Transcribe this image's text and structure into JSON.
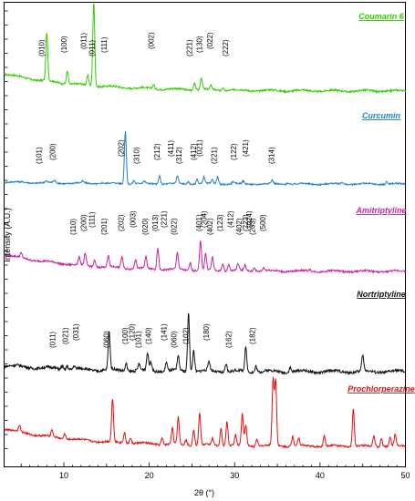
{
  "chart_data": {
    "type": "line",
    "title": "",
    "xlabel": "2θ (°)",
    "ylabel": "Intensity (A.U.)",
    "xlim": [
      3,
      50
    ],
    "x_ticks": [
      10,
      20,
      30,
      40,
      50
    ],
    "grid": false,
    "series": [
      {
        "name": "Coumarin 6",
        "color": "#33cc00",
        "baseline": 0.33,
        "peaks": [
          {
            "x": 8.0,
            "h": 0.9
          },
          {
            "x": 10.4,
            "h": 0.25
          },
          {
            "x": 12.8,
            "h": 0.18
          },
          {
            "x": 13.5,
            "h": 1.6
          },
          {
            "x": 20.5,
            "h": 0.08
          },
          {
            "x": 25.3,
            "h": 0.15
          },
          {
            "x": 26.1,
            "h": 0.22
          },
          {
            "x": 27.2,
            "h": 0.08
          },
          {
            "x": 28.6,
            "h": 0.06
          }
        ],
        "peak_labels": [
          {
            "x": 7.7,
            "text": "(010)"
          },
          {
            "x": 10.3,
            "text": "(100)"
          },
          {
            "x": 12.6,
            "text": "(011)"
          },
          {
            "x": 13.6,
            "text": "(011)"
          },
          {
            "x": 15.0,
            "text": "(111)"
          },
          {
            "x": 20.5,
            "text": "(002)"
          },
          {
            "x": 25.0,
            "text": "(221)"
          },
          {
            "x": 26.2,
            "text": "(130)"
          },
          {
            "x": 27.4,
            "text": "(022)"
          },
          {
            "x": 29.2,
            "text": "(222)"
          }
        ]
      },
      {
        "name": "Curcumin",
        "color": "#1f7fd0",
        "baseline": 0.05,
        "peaks": [
          {
            "x": 7.9,
            "h": 0.04
          },
          {
            "x": 8.9,
            "h": 0.06
          },
          {
            "x": 12.2,
            "h": 0.04
          },
          {
            "x": 14.5,
            "h": 0.03
          },
          {
            "x": 17.2,
            "h": 1.3
          },
          {
            "x": 18.2,
            "h": 0.08
          },
          {
            "x": 19.4,
            "h": 0.05
          },
          {
            "x": 21.2,
            "h": 0.2
          },
          {
            "x": 23.3,
            "h": 0.18
          },
          {
            "x": 24.6,
            "h": 0.06
          },
          {
            "x": 25.6,
            "h": 0.12
          },
          {
            "x": 26.4,
            "h": 0.16
          },
          {
            "x": 27.4,
            "h": 0.1
          },
          {
            "x": 28.0,
            "h": 0.18
          },
          {
            "x": 29.8,
            "h": 0.05
          },
          {
            "x": 31.0,
            "h": 0.06
          },
          {
            "x": 34.4,
            "h": 0.08
          },
          {
            "x": 36.2,
            "h": 0.04
          },
          {
            "x": 42.6,
            "h": 0.05
          },
          {
            "x": 47.8,
            "h": 0.06
          }
        ],
        "peak_labels": [
          {
            "x": 7.4,
            "text": "(101)"
          },
          {
            "x": 9.0,
            "text": "(200)"
          },
          {
            "x": 17.0,
            "text": "(202)"
          },
          {
            "x": 18.8,
            "text": "(310)"
          },
          {
            "x": 21.2,
            "text": "(212)"
          },
          {
            "x": 22.8,
            "text": "(411)"
          },
          {
            "x": 23.8,
            "text": "(312)"
          },
          {
            "x": 25.5,
            "text": "(412)"
          },
          {
            "x": 26.2,
            "text": "(021)"
          },
          {
            "x": 27.9,
            "text": "(221)"
          },
          {
            "x": 30.2,
            "text": "(122)"
          },
          {
            "x": 31.6,
            "text": "(421)"
          },
          {
            "x": 34.6,
            "text": "(314)"
          }
        ]
      },
      {
        "name": "Amitriptyline",
        "color": "#cc2299",
        "baseline": 0.32,
        "peaks": [
          {
            "x": 5.0,
            "h": 0.08
          },
          {
            "x": 11.8,
            "h": 0.14
          },
          {
            "x": 12.5,
            "h": 0.22
          },
          {
            "x": 13.6,
            "h": 0.12
          },
          {
            "x": 15.2,
            "h": 0.2
          },
          {
            "x": 16.8,
            "h": 0.22
          },
          {
            "x": 18.4,
            "h": 0.18
          },
          {
            "x": 19.6,
            "h": 0.22
          },
          {
            "x": 21.0,
            "h": 0.4
          },
          {
            "x": 23.3,
            "h": 0.32
          },
          {
            "x": 24.8,
            "h": 0.15
          },
          {
            "x": 26.0,
            "h": 0.55
          },
          {
            "x": 26.6,
            "h": 0.3
          },
          {
            "x": 27.4,
            "h": 0.24
          },
          {
            "x": 28.6,
            "h": 0.14
          },
          {
            "x": 29.3,
            "h": 0.12
          },
          {
            "x": 30.4,
            "h": 0.12
          },
          {
            "x": 31.2,
            "h": 0.1
          },
          {
            "x": 32.3,
            "h": 0.08
          },
          {
            "x": 33.4,
            "h": 0.06
          },
          {
            "x": 38.8,
            "h": 0.03
          }
        ],
        "peak_labels": [
          {
            "x": 11.4,
            "text": "(110)"
          },
          {
            "x": 12.6,
            "text": "(200)"
          },
          {
            "x": 13.6,
            "text": "(111)"
          },
          {
            "x": 15.0,
            "text": "(201)"
          },
          {
            "x": 17.0,
            "text": "(202)"
          },
          {
            "x": 18.4,
            "text": "(003)"
          },
          {
            "x": 19.8,
            "text": "(020)"
          },
          {
            "x": 21.0,
            "text": "(013)"
          },
          {
            "x": 22.0,
            "text": "(221)"
          },
          {
            "x": 23.2,
            "text": "(022)"
          },
          {
            "x": 26.1,
            "text": "(401)"
          },
          {
            "x": 26.7,
            "text": "(204)"
          },
          {
            "x": 27.4,
            "text": "(402)"
          },
          {
            "x": 28.6,
            "text": "(123)"
          },
          {
            "x": 29.8,
            "text": "(412)"
          },
          {
            "x": 30.8,
            "text": "(402)"
          },
          {
            "x": 31.6,
            "text": "(223)"
          },
          {
            "x": 32.0,
            "text": "(024)"
          },
          {
            "x": 32.4,
            "text": "(203)"
          },
          {
            "x": 33.6,
            "text": "(500)"
          }
        ]
      },
      {
        "name": "Nortriptyline",
        "color": "#111111",
        "baseline": 0.08,
        "peaks": [
          {
            "x": 9.8,
            "h": 0.05
          },
          {
            "x": 10.4,
            "h": 0.05
          },
          {
            "x": 11.2,
            "h": 0.04
          },
          {
            "x": 15.3,
            "h": 0.48
          },
          {
            "x": 17.3,
            "h": 0.1
          },
          {
            "x": 18.8,
            "h": 0.08
          },
          {
            "x": 19.8,
            "h": 0.22
          },
          {
            "x": 20.2,
            "h": 0.12
          },
          {
            "x": 22.0,
            "h": 0.12
          },
          {
            "x": 23.4,
            "h": 0.18
          },
          {
            "x": 24.6,
            "h": 0.75
          },
          {
            "x": 25.2,
            "h": 0.28
          },
          {
            "x": 27.0,
            "h": 0.12
          },
          {
            "x": 29.0,
            "h": 0.1
          },
          {
            "x": 31.3,
            "h": 0.3
          },
          {
            "x": 32.5,
            "h": 0.08
          },
          {
            "x": 36.5,
            "h": 0.06
          },
          {
            "x": 45.0,
            "h": 0.2
          }
        ],
        "peak_labels": [
          {
            "x": 9.0,
            "text": "(011)"
          },
          {
            "x": 10.5,
            "text": "(021)"
          },
          {
            "x": 11.7,
            "text": "(031)"
          },
          {
            "x": 15.3,
            "text": "(060)"
          },
          {
            "x": 17.5,
            "text": "(100)"
          },
          {
            "x": 18.3,
            "text": "(120)"
          },
          {
            "x": 19.0,
            "text": "(101)"
          },
          {
            "x": 20.2,
            "text": "(140)"
          },
          {
            "x": 22.0,
            "text": "(141)"
          },
          {
            "x": 23.2,
            "text": "(060)"
          },
          {
            "x": 24.6,
            "text": "(102)"
          },
          {
            "x": 27.0,
            "text": "(180)"
          },
          {
            "x": 29.6,
            "text": "(162)"
          },
          {
            "x": 32.4,
            "text": "(182)"
          }
        ]
      },
      {
        "name": "Prochlorperazine",
        "color": "#e11111",
        "baseline": 0.32,
        "peaks": [
          {
            "x": 4.8,
            "h": 0.12
          },
          {
            "x": 8.6,
            "h": 0.12
          },
          {
            "x": 10.1,
            "h": 0.1
          },
          {
            "x": 15.7,
            "h": 0.78
          },
          {
            "x": 17.1,
            "h": 0.2
          },
          {
            "x": 17.8,
            "h": 0.1
          },
          {
            "x": 21.5,
            "h": 0.12
          },
          {
            "x": 22.7,
            "h": 0.3
          },
          {
            "x": 23.4,
            "h": 0.5
          },
          {
            "x": 24.3,
            "h": 0.1
          },
          {
            "x": 25.2,
            "h": 0.3
          },
          {
            "x": 25.9,
            "h": 0.58
          },
          {
            "x": 27.4,
            "h": 0.12
          },
          {
            "x": 28.4,
            "h": 0.32
          },
          {
            "x": 29.1,
            "h": 0.45
          },
          {
            "x": 30.1,
            "h": 0.18
          },
          {
            "x": 30.9,
            "h": 0.58
          },
          {
            "x": 31.3,
            "h": 0.38
          },
          {
            "x": 32.6,
            "h": 0.14
          },
          {
            "x": 34.5,
            "h": 1.2
          },
          {
            "x": 34.8,
            "h": 1.2
          },
          {
            "x": 36.8,
            "h": 0.18
          },
          {
            "x": 37.5,
            "h": 0.14
          },
          {
            "x": 40.5,
            "h": 0.2
          },
          {
            "x": 43.9,
            "h": 0.7
          },
          {
            "x": 46.3,
            "h": 0.2
          },
          {
            "x": 47.2,
            "h": 0.16
          },
          {
            "x": 48.2,
            "h": 0.16
          },
          {
            "x": 48.8,
            "h": 0.22
          }
        ],
        "peak_labels": []
      }
    ]
  }
}
